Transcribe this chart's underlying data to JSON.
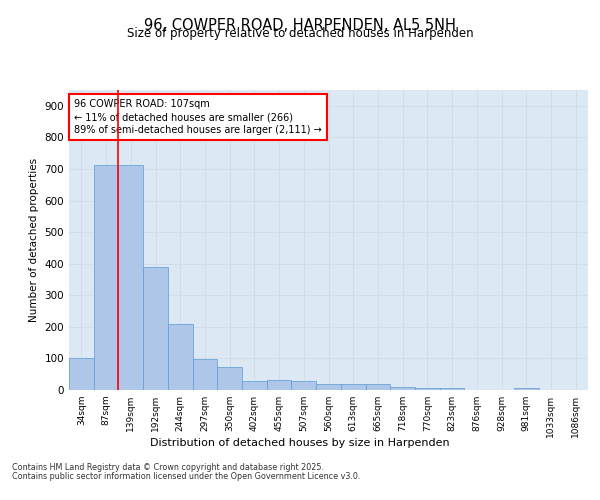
{
  "title_line1": "96, COWPER ROAD, HARPENDEN, AL5 5NH",
  "title_line2": "Size of property relative to detached houses in Harpenden",
  "xlabel": "Distribution of detached houses by size in Harpenden",
  "ylabel": "Number of detached properties",
  "categories": [
    "34sqm",
    "87sqm",
    "139sqm",
    "192sqm",
    "244sqm",
    "297sqm",
    "350sqm",
    "402sqm",
    "455sqm",
    "507sqm",
    "560sqm",
    "613sqm",
    "665sqm",
    "718sqm",
    "770sqm",
    "823sqm",
    "876sqm",
    "928sqm",
    "981sqm",
    "1033sqm",
    "1086sqm"
  ],
  "values": [
    100,
    712,
    712,
    390,
    208,
    97,
    73,
    30,
    31,
    30,
    19,
    20,
    20,
    9,
    7,
    6,
    0,
    0,
    6,
    0,
    0
  ],
  "bar_color": "#aec6e8",
  "bar_edge_color": "#5b9bd5",
  "vline_color": "red",
  "annotation_text": "96 COWPER ROAD: 107sqm\n← 11% of detached houses are smaller (266)\n89% of semi-detached houses are larger (2,111) →",
  "annotation_box_color": "white",
  "annotation_box_edge": "red",
  "ylim": [
    0,
    950
  ],
  "yticks": [
    0,
    100,
    200,
    300,
    400,
    500,
    600,
    700,
    800,
    900
  ],
  "footer1": "Contains HM Land Registry data © Crown copyright and database right 2025.",
  "footer2": "Contains public sector information licensed under the Open Government Licence v3.0.",
  "grid_color": "#d0dce8",
  "background_color": "#dce9f5"
}
